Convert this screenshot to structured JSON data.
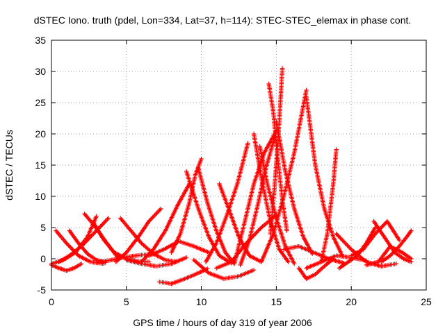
{
  "chart_data": {
    "type": "scatter",
    "title": "dSTEC Iono. truth (pdel, Lon=334, Lat=37, h=114): STEC-STEC_elemax in phase cont.",
    "xlabel": "GPS time / hours of day 319 of year 2006",
    "ylabel": "dSTEC  / TECUs",
    "xlim": [
      0,
      25
    ],
    "ylim": [
      -5,
      35
    ],
    "x_ticks": [
      "0",
      "5",
      "10",
      "15",
      "20",
      "25"
    ],
    "y_ticks": [
      "-5",
      "0",
      "5",
      "10",
      "15",
      "20",
      "25",
      "30",
      "35"
    ],
    "grid": true,
    "legend": "none",
    "marker": "plus",
    "color": "#ff0000",
    "arcs": [
      {
        "x": [
          0.0,
          0.5,
          1.0,
          1.5,
          2.0
        ],
        "y": [
          -1.0,
          -1.5,
          -1.9,
          -1.5,
          -0.8
        ]
      },
      {
        "x": [
          0.0,
          0.8,
          1.6,
          2.4,
          3.0
        ],
        "y": [
          -0.8,
          -0.2,
          1.0,
          3.5,
          6.8
        ]
      },
      {
        "x": [
          0.3,
          1.0,
          1.8,
          2.6,
          3.5
        ],
        "y": [
          4.5,
          2.5,
          0.5,
          -0.5,
          -0.8
        ]
      },
      {
        "x": [
          0.5,
          1.2,
          2.0,
          2.8,
          3.8
        ],
        "y": [
          -0.5,
          0.5,
          2.0,
          4.0,
          6.5
        ]
      },
      {
        "x": [
          1.2,
          1.8,
          2.4,
          3.0,
          3.6
        ],
        "y": [
          4.5,
          2.5,
          0.8,
          -0.2,
          -0.6
        ]
      },
      {
        "x": [
          2.2,
          2.8,
          3.4,
          4.0,
          4.5
        ],
        "y": [
          7.2,
          5.5,
          3.5,
          1.5,
          0.0
        ]
      },
      {
        "x": [
          2.8,
          3.5,
          4.2,
          5.0,
          5.8,
          6.5
        ],
        "y": [
          5.8,
          3.0,
          1.0,
          0.0,
          -0.4,
          -0.5
        ]
      },
      {
        "x": [
          3.0,
          4.0,
          5.0,
          6.0,
          7.0
        ],
        "y": [
          -0.6,
          -0.2,
          0.3,
          0.6,
          0.8
        ]
      },
      {
        "x": [
          4.3,
          5.0,
          5.8,
          6.5,
          7.3
        ],
        "y": [
          -0.5,
          1.0,
          3.5,
          6.0,
          8.0
        ]
      },
      {
        "x": [
          4.6,
          5.3,
          6.0,
          6.8,
          7.6,
          8.3
        ],
        "y": [
          6.5,
          4.5,
          2.5,
          0.8,
          -0.2,
          -0.5
        ]
      },
      {
        "x": [
          5.0,
          6.0,
          7.0,
          8.0,
          9.0
        ],
        "y": [
          -0.2,
          -0.8,
          -1.2,
          -0.8,
          0.2
        ]
      },
      {
        "x": [
          6.0,
          6.8,
          7.6,
          8.4,
          9.2
        ],
        "y": [
          -0.5,
          1.5,
          4.5,
          8.5,
          12.0
        ]
      },
      {
        "x": [
          6.5,
          7.5,
          8.5,
          9.5,
          10.5
        ],
        "y": [
          0.5,
          1.5,
          2.8,
          2.0,
          1.0
        ]
      },
      {
        "x": [
          7.2,
          8.0,
          8.8,
          9.6,
          10.4
        ],
        "y": [
          -3.7,
          -4.0,
          -3.3,
          -2.5,
          -1.6
        ]
      },
      {
        "x": [
          8.0,
          8.6,
          9.2,
          9.6,
          10.0
        ],
        "y": [
          1.0,
          4.0,
          9.0,
          13.5,
          16.0
        ]
      },
      {
        "x": [
          9.0,
          9.8,
          10.5,
          11.2,
          12.0
        ],
        "y": [
          14.0,
          8.0,
          3.5,
          0.5,
          -0.7
        ]
      },
      {
        "x": [
          9.8,
          10.4,
          11.0,
          11.6,
          12.2
        ],
        "y": [
          14.5,
          9.0,
          4.5,
          1.0,
          -0.8
        ]
      },
      {
        "x": [
          9.5,
          10.5,
          11.5,
          12.5,
          13.5
        ],
        "y": [
          -0.2,
          -2.3,
          -3.2,
          -2.8,
          -1.8
        ]
      },
      {
        "x": [
          10.3,
          11.0,
          11.7,
          12.4,
          13.1
        ],
        "y": [
          -0.5,
          2.5,
          7.0,
          12.0,
          18.5
        ]
      },
      {
        "x": [
          11.2,
          11.9,
          12.5,
          13.2,
          14.0
        ],
        "y": [
          12.0,
          7.5,
          3.5,
          0.5,
          -0.5
        ]
      },
      {
        "x": [
          11.0,
          12.0,
          13.0,
          14.0,
          15.0
        ],
        "y": [
          -1.5,
          -0.5,
          2.5,
          5.0,
          7.0
        ]
      },
      {
        "x": [
          12.2,
          12.9,
          13.5,
          14.2,
          15.0
        ],
        "y": [
          -0.8,
          6.0,
          12.0,
          17.0,
          20.5
        ]
      },
      {
        "x": [
          12.6,
          13.2,
          13.8,
          14.3,
          14.9
        ],
        "y": [
          -1.0,
          3.0,
          9.0,
          14.5,
          19.5
        ]
      },
      {
        "x": [
          13.5,
          14.0,
          14.6,
          15.2,
          15.8
        ],
        "y": [
          20.0,
          13.0,
          6.0,
          1.5,
          -0.5
        ]
      },
      {
        "x": [
          13.9,
          14.4,
          15.0,
          15.6,
          16.2
        ],
        "y": [
          18.0,
          12.0,
          6.5,
          2.0,
          -0.8
        ]
      },
      {
        "x": [
          14.0,
          14.8,
          15.5,
          16.2,
          17.0
        ],
        "y": [
          -0.5,
          4.0,
          10.0,
          17.0,
          27.0
        ]
      },
      {
        "x": [
          14.5,
          14.8,
          15.1,
          15.4,
          15.7
        ],
        "y": [
          28.0,
          23.5,
          16.0,
          9.5,
          4.5
        ]
      },
      {
        "x": [
          14.6,
          14.9,
          15.2,
          15.4
        ],
        "y": [
          4.0,
          12.0,
          22.0,
          30.5
        ]
      },
      {
        "x": [
          15.0,
          15.6,
          16.2,
          16.8,
          17.4
        ],
        "y": [
          22.0,
          14.0,
          8.0,
          3.5,
          0.8
        ]
      },
      {
        "x": [
          15.5,
          16.5,
          17.5,
          18.5,
          19.5
        ],
        "y": [
          1.5,
          2.0,
          1.0,
          0.0,
          -0.7
        ]
      },
      {
        "x": [
          16.5,
          17.0,
          17.6,
          18.2,
          18.8
        ],
        "y": [
          -1.5,
          -3.2,
          -2.5,
          -1.2,
          0.0
        ]
      },
      {
        "x": [
          17.0,
          17.6,
          18.2,
          18.8,
          19.4
        ],
        "y": [
          26.0,
          15.0,
          8.0,
          3.5,
          0.5
        ]
      },
      {
        "x": [
          17.0,
          18.0,
          19.0,
          20.0,
          21.0
        ],
        "y": [
          -1.5,
          -0.5,
          0.5,
          0.2,
          -0.3
        ]
      },
      {
        "x": [
          18.0,
          18.4,
          18.8,
          19.0
        ],
        "y": [
          -0.5,
          4.0,
          12.0,
          17.5
        ]
      },
      {
        "x": [
          19.0,
          20.0,
          21.0,
          22.0,
          23.0
        ],
        "y": [
          4.0,
          1.5,
          -0.5,
          -1.2,
          -0.8
        ]
      },
      {
        "x": [
          19.2,
          19.8,
          20.4,
          21.0,
          21.6
        ],
        "y": [
          -1.5,
          -0.5,
          0.5,
          2.5,
          5.0
        ]
      },
      {
        "x": [
          20.0,
          20.8,
          21.6,
          22.4,
          23.2
        ],
        "y": [
          0.5,
          1.5,
          4.0,
          6.0,
          3.0
        ]
      },
      {
        "x": [
          21.0,
          21.8,
          22.6,
          23.4,
          24.0
        ],
        "y": [
          -1.0,
          -0.5,
          2.0,
          1.0,
          0.0
        ]
      },
      {
        "x": [
          21.5,
          22.2,
          22.9,
          23.5,
          24.0
        ],
        "y": [
          6.0,
          3.5,
          1.0,
          0.0,
          -0.5
        ]
      },
      {
        "x": [
          22.0,
          22.6,
          23.2,
          23.7,
          24.0
        ],
        "y": [
          -0.5,
          0.5,
          2.0,
          3.5,
          4.5
        ]
      }
    ]
  }
}
